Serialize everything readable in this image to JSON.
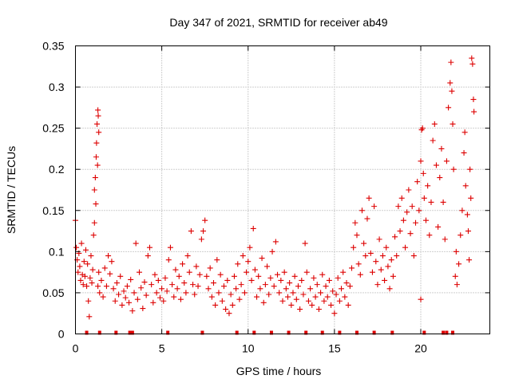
{
  "chart_data": {
    "type": "scatter",
    "title": "Day 347 of 2021, SRMTID for receiver ab49",
    "xlabel": "GPS time / hours",
    "ylabel": "SRMTID / TECUs",
    "xlim": [
      0,
      24
    ],
    "ylim": [
      0,
      0.35
    ],
    "xticks": [
      0,
      5,
      10,
      15,
      20
    ],
    "xtick_labels": [
      "0",
      "5",
      "10",
      "15",
      "20"
    ],
    "yticks": [
      0,
      0.05,
      0.1,
      0.15,
      0.2,
      0.25,
      0.3,
      0.35
    ],
    "ytick_labels": [
      "0",
      "0.05",
      "0.1",
      "0.15",
      "0.2",
      "0.25",
      "0.3",
      "0.35"
    ],
    "grid": true,
    "marker": "+",
    "color": "#dd0000",
    "series": [
      {
        "name": "SRMTID",
        "points": [
          [
            0.0,
            0.138
          ],
          [
            0.05,
            0.105
          ],
          [
            0.1,
            0.09
          ],
          [
            0.15,
            0.075
          ],
          [
            0.2,
            0.098
          ],
          [
            0.25,
            0.082
          ],
          [
            0.3,
            0.065
          ],
          [
            0.35,
            0.11
          ],
          [
            0.4,
            0.072
          ],
          [
            0.45,
            0.06
          ],
          [
            0.5,
            0.088
          ],
          [
            0.55,
            0.07
          ],
          [
            0.6,
            0.102
          ],
          [
            0.65,
            0.058
          ],
          [
            0.7,
            0.085
          ],
          [
            0.75,
            0.04
          ],
          [
            0.8,
            0.021
          ],
          [
            0.85,
            0.068
          ],
          [
            0.9,
            0.095
          ],
          [
            0.95,
            0.062
          ],
          [
            1.0,
            0.078
          ],
          [
            1.05,
            0.12
          ],
          [
            1.1,
            0.135
          ],
          [
            1.1,
            0.175
          ],
          [
            1.15,
            0.19
          ],
          [
            1.2,
            0.215
          ],
          [
            1.22,
            0.232
          ],
          [
            1.25,
            0.255
          ],
          [
            1.3,
            0.272
          ],
          [
            1.32,
            0.265
          ],
          [
            1.35,
            0.245
          ],
          [
            1.18,
            0.158
          ],
          [
            1.28,
            0.205
          ],
          [
            1.3,
            0.058
          ],
          [
            1.35,
            0.075
          ],
          [
            1.4,
            0.05
          ],
          [
            1.5,
            0.065
          ],
          [
            1.6,
            0.045
          ],
          [
            1.7,
            0.08
          ],
          [
            1.8,
            0.058
          ],
          [
            1.9,
            0.095
          ],
          [
            2.0,
            0.073
          ],
          [
            2.1,
            0.088
          ],
          [
            2.2,
            0.055
          ],
          [
            2.3,
            0.04
          ],
          [
            2.4,
            0.062
          ],
          [
            2.5,
            0.048
          ],
          [
            2.6,
            0.07
          ],
          [
            2.7,
            0.035
          ],
          [
            2.8,
            0.052
          ],
          [
            2.9,
            0.044
          ],
          [
            3.0,
            0.058
          ],
          [
            3.1,
            0.038
          ],
          [
            3.2,
            0.066
          ],
          [
            3.3,
            0.028
          ],
          [
            3.4,
            0.05
          ],
          [
            3.5,
            0.11
          ],
          [
            3.6,
            0.042
          ],
          [
            3.7,
            0.075
          ],
          [
            3.8,
            0.056
          ],
          [
            3.9,
            0.031
          ],
          [
            4.0,
            0.063
          ],
          [
            4.1,
            0.047
          ],
          [
            4.2,
            0.095
          ],
          [
            4.3,
            0.105
          ],
          [
            4.4,
            0.06
          ],
          [
            4.5,
            0.038
          ],
          [
            4.6,
            0.072
          ],
          [
            4.7,
            0.05
          ],
          [
            4.8,
            0.065
          ],
          [
            4.9,
            0.044
          ],
          [
            5.0,
            0.055
          ],
          [
            5.1,
            0.04
          ],
          [
            5.2,
            0.068
          ],
          [
            5.3,
            0.052
          ],
          [
            5.4,
            0.09
          ],
          [
            5.5,
            0.105
          ],
          [
            5.6,
            0.06
          ],
          [
            5.7,
            0.045
          ],
          [
            5.8,
            0.078
          ],
          [
            5.9,
            0.055
          ],
          [
            6.0,
            0.07
          ],
          [
            6.1,
            0.042
          ],
          [
            6.2,
            0.085
          ],
          [
            6.3,
            0.062
          ],
          [
            6.4,
            0.05
          ],
          [
            6.5,
            0.095
          ],
          [
            6.6,
            0.075
          ],
          [
            6.7,
            0.125
          ],
          [
            6.8,
            0.06
          ],
          [
            6.9,
            0.048
          ],
          [
            7.0,
            0.082
          ],
          [
            7.1,
            0.058
          ],
          [
            7.2,
            0.072
          ],
          [
            7.3,
            0.115
          ],
          [
            7.4,
            0.125
          ],
          [
            7.5,
            0.138
          ],
          [
            7.6,
            0.07
          ],
          [
            7.7,
            0.055
          ],
          [
            7.8,
            0.08
          ],
          [
            7.9,
            0.045
          ],
          [
            8.0,
            0.062
          ],
          [
            8.1,
            0.035
          ],
          [
            8.2,
            0.09
          ],
          [
            8.3,
            0.05
          ],
          [
            8.4,
            0.072
          ],
          [
            8.5,
            0.04
          ],
          [
            8.6,
            0.058
          ],
          [
            8.7,
            0.03
          ],
          [
            8.8,
            0.065
          ],
          [
            8.9,
            0.025
          ],
          [
            9.0,
            0.048
          ],
          [
            9.1,
            0.035
          ],
          [
            9.2,
            0.07
          ],
          [
            9.3,
            0.055
          ],
          [
            9.4,
            0.085
          ],
          [
            9.5,
            0.042
          ],
          [
            9.6,
            0.06
          ],
          [
            9.7,
            0.095
          ],
          [
            9.8,
            0.05
          ],
          [
            9.9,
            0.075
          ],
          [
            10.0,
            0.088
          ],
          [
            10.1,
            0.105
          ],
          [
            10.2,
            0.065
          ],
          [
            10.3,
            0.128
          ],
          [
            10.4,
            0.078
          ],
          [
            10.5,
            0.045
          ],
          [
            10.6,
            0.07
          ],
          [
            10.7,
            0.055
          ],
          [
            10.8,
            0.092
          ],
          [
            10.9,
            0.038
          ],
          [
            11.0,
            0.06
          ],
          [
            11.1,
            0.082
          ],
          [
            11.2,
            0.048
          ],
          [
            11.3,
            0.068
          ],
          [
            11.4,
            0.1
          ],
          [
            11.5,
            0.058
          ],
          [
            11.6,
            0.112
          ],
          [
            11.7,
            0.072
          ],
          [
            11.8,
            0.05
          ],
          [
            11.9,
            0.065
          ],
          [
            12.0,
            0.04
          ],
          [
            12.1,
            0.075
          ],
          [
            12.2,
            0.055
          ],
          [
            12.3,
            0.045
          ],
          [
            12.4,
            0.062
          ],
          [
            12.5,
            0.035
          ],
          [
            12.6,
            0.05
          ],
          [
            12.7,
            0.07
          ],
          [
            12.8,
            0.042
          ],
          [
            12.9,
            0.058
          ],
          [
            13.0,
            0.03
          ],
          [
            13.1,
            0.065
          ],
          [
            13.2,
            0.048
          ],
          [
            13.3,
            0.11
          ],
          [
            13.4,
            0.075
          ],
          [
            13.5,
            0.04
          ],
          [
            13.6,
            0.055
          ],
          [
            13.7,
            0.035
          ],
          [
            13.8,
            0.068
          ],
          [
            13.9,
            0.045
          ],
          [
            14.0,
            0.06
          ],
          [
            14.1,
            0.03
          ],
          [
            14.2,
            0.05
          ],
          [
            14.3,
            0.072
          ],
          [
            14.4,
            0.04
          ],
          [
            14.5,
            0.058
          ],
          [
            14.6,
            0.045
          ],
          [
            14.7,
            0.065
          ],
          [
            14.8,
            0.035
          ],
          [
            14.9,
            0.052
          ],
          [
            15.0,
            0.025
          ],
          [
            15.1,
            0.048
          ],
          [
            15.2,
            0.068
          ],
          [
            15.3,
            0.04
          ],
          [
            15.4,
            0.055
          ],
          [
            15.5,
            0.075
          ],
          [
            15.6,
            0.045
          ],
          [
            15.7,
            0.062
          ],
          [
            15.8,
            0.035
          ],
          [
            15.9,
            0.058
          ],
          [
            16.0,
            0.08
          ],
          [
            16.1,
            0.105
          ],
          [
            16.2,
            0.135
          ],
          [
            16.3,
            0.12
          ],
          [
            16.4,
            0.085
          ],
          [
            16.5,
            0.072
          ],
          [
            16.6,
            0.15
          ],
          [
            16.7,
            0.11
          ],
          [
            16.8,
            0.095
          ],
          [
            16.9,
            0.14
          ],
          [
            17.0,
            0.165
          ],
          [
            17.1,
            0.098
          ],
          [
            17.2,
            0.075
          ],
          [
            17.3,
            0.155
          ],
          [
            17.4,
            0.088
          ],
          [
            17.5,
            0.06
          ],
          [
            17.6,
            0.115
          ],
          [
            17.7,
            0.078
          ],
          [
            17.8,
            0.095
          ],
          [
            17.9,
            0.065
          ],
          [
            18.0,
            0.105
          ],
          [
            18.1,
            0.082
          ],
          [
            18.2,
            0.055
          ],
          [
            18.3,
            0.09
          ],
          [
            18.4,
            0.07
          ],
          [
            18.5,
            0.118
          ],
          [
            18.6,
            0.095
          ],
          [
            18.7,
            0.155
          ],
          [
            18.8,
            0.125
          ],
          [
            18.9,
            0.165
          ],
          [
            19.0,
            0.138
          ],
          [
            19.1,
            0.105
          ],
          [
            19.2,
            0.148
          ],
          [
            19.3,
            0.175
          ],
          [
            19.4,
            0.122
          ],
          [
            19.5,
            0.155
          ],
          [
            19.6,
            0.095
          ],
          [
            19.7,
            0.135
          ],
          [
            19.8,
            0.185
          ],
          [
            19.9,
            0.15
          ],
          [
            20.0,
            0.042
          ],
          [
            20.0,
            0.21
          ],
          [
            20.05,
            0.248
          ],
          [
            20.1,
            0.25
          ],
          [
            20.15,
            0.195
          ],
          [
            20.2,
            0.165
          ],
          [
            20.3,
            0.138
          ],
          [
            20.4,
            0.18
          ],
          [
            20.5,
            0.12
          ],
          [
            20.6,
            0.16
          ],
          [
            20.7,
            0.235
          ],
          [
            20.8,
            0.255
          ],
          [
            20.9,
            0.205
          ],
          [
            21.0,
            0.13
          ],
          [
            21.1,
            0.19
          ],
          [
            21.2,
            0.225
          ],
          [
            21.3,
            0.16
          ],
          [
            21.4,
            0.115
          ],
          [
            21.5,
            0.21
          ],
          [
            21.6,
            0.275
          ],
          [
            21.7,
            0.305
          ],
          [
            21.75,
            0.33
          ],
          [
            21.8,
            0.295
          ],
          [
            21.85,
            0.255
          ],
          [
            21.9,
            0.2
          ],
          [
            22.0,
            0.07
          ],
          [
            22.05,
            0.1
          ],
          [
            22.1,
            0.06
          ],
          [
            22.2,
            0.085
          ],
          [
            22.3,
            0.12
          ],
          [
            22.4,
            0.15
          ],
          [
            22.5,
            0.22
          ],
          [
            22.55,
            0.245
          ],
          [
            22.6,
            0.18
          ],
          [
            22.7,
            0.145
          ],
          [
            22.75,
            0.125
          ],
          [
            22.8,
            0.09
          ],
          [
            22.85,
            0.2
          ],
          [
            22.9,
            0.165
          ],
          [
            22.95,
            0.335
          ],
          [
            23.0,
            0.328
          ],
          [
            23.05,
            0.285
          ],
          [
            23.08,
            0.27
          ]
        ]
      }
    ],
    "zero_points_x": [
      0.65,
      1.4,
      2.35,
      3.15,
      3.3,
      5.35,
      7.35,
      9.35,
      10.35,
      11.35,
      12.35,
      13.35,
      14.3,
      15.3,
      16.3,
      17.3,
      18.35,
      20.2,
      21.3,
      21.5,
      21.85
    ]
  }
}
